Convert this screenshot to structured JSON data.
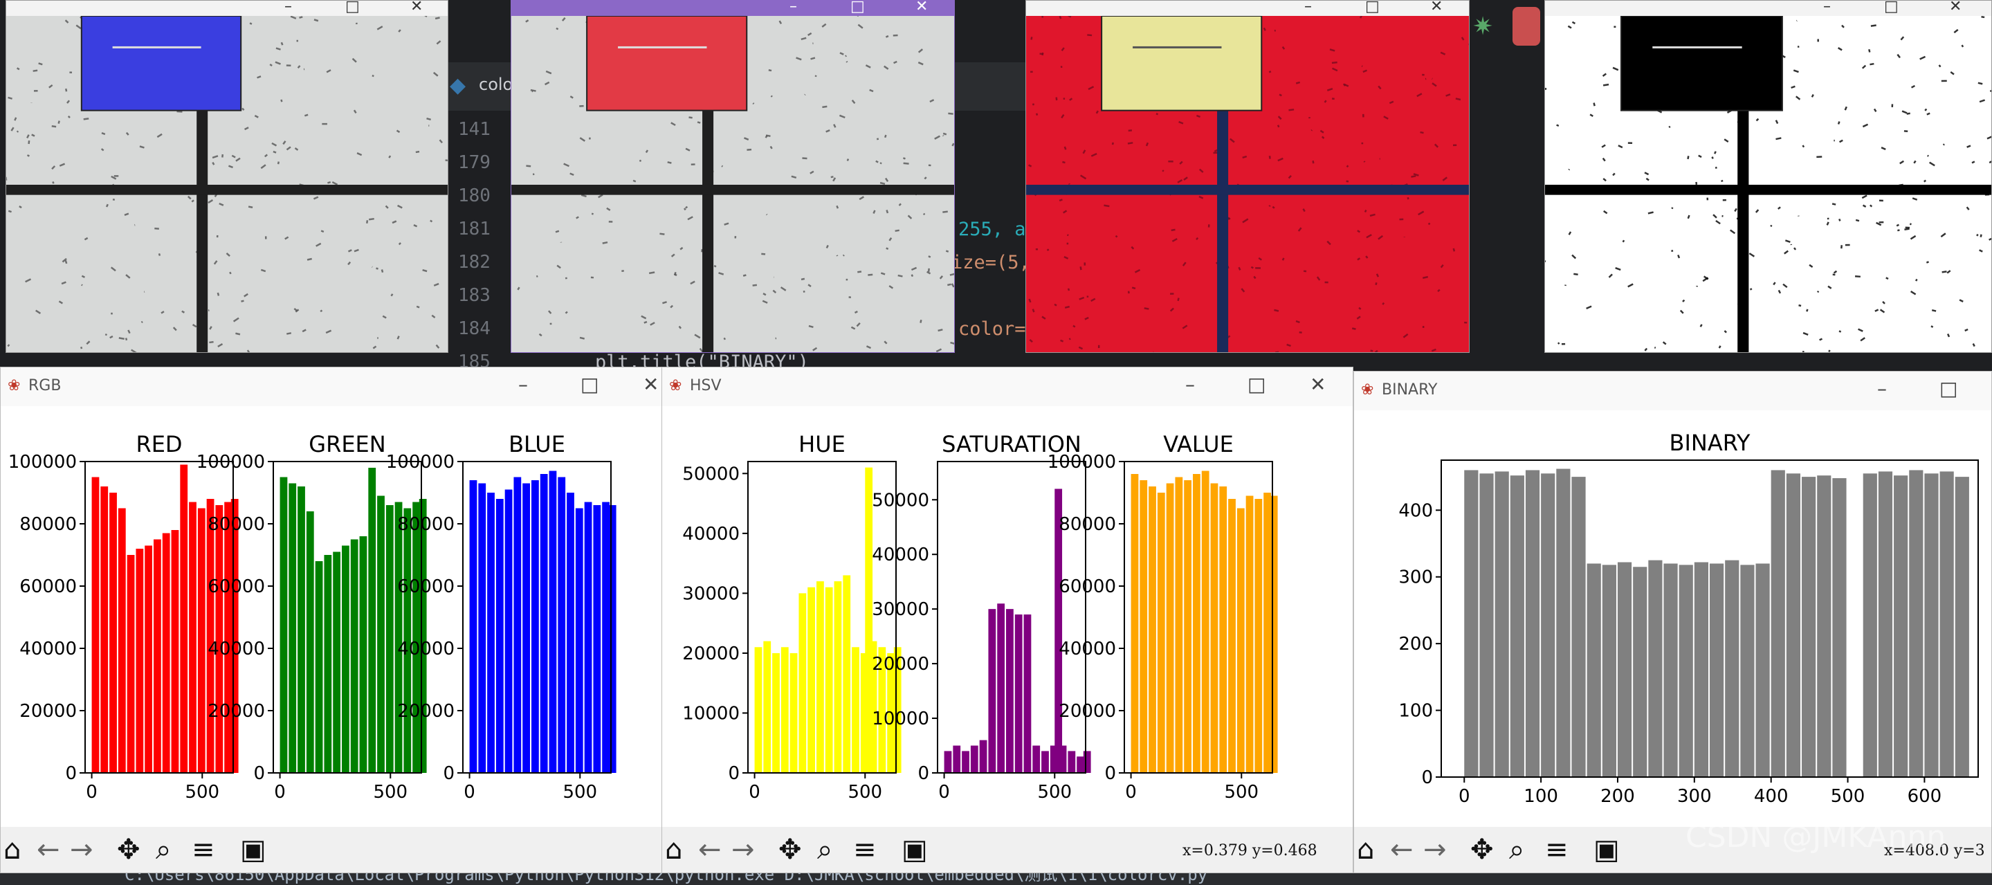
{
  "ide": {
    "file_tab": "colo",
    "line_numbers": [
      "141",
      "179",
      "180",
      "181",
      "182",
      "183",
      "184",
      "185"
    ],
    "code_fragments": [
      "255, a",
      "ize=(5,",
      "color=",
      "plt.title(\"BINARY\")"
    ],
    "terminal_text": "C:\\Users\\86150\\AppData\\Local\\Programs\\Python\\Python312\\python.exe D:\\JMKA\\school\\embedded\\测试\\1\\1\\colorcv.py"
  },
  "image_windows": [
    {
      "id": "original",
      "tile_color": "#3a3ee0"
    },
    {
      "id": "bgr",
      "tile_color": "#e23a45"
    },
    {
      "id": "hsv",
      "tile_color": "#e8e59a"
    },
    {
      "id": "binary",
      "tile_color": "#000000"
    }
  ],
  "plot_windows": [
    {
      "title": "RGB"
    },
    {
      "title": "HSV",
      "coords": "x=0.379  y=0.468"
    },
    {
      "title": "BINARY",
      "coords": "x=408.0  y=3"
    }
  ],
  "icons": [
    "python-file-icon",
    "bug-icon",
    "home-icon",
    "back-arrow-icon",
    "forward-arrow-icon",
    "pan-icon",
    "zoom-icon",
    "configure-subplots-icon",
    "save-icon",
    "minimize-icon",
    "maximize-icon",
    "close-icon"
  ],
  "watermark": "CSDN @JMKAnnn",
  "chart_data": [
    {
      "type": "bar",
      "title": "RED",
      "color": "#ff0000",
      "xlim": [
        -30,
        640
      ],
      "ylim": [
        0,
        100000
      ],
      "yticks": [
        0,
        20000,
        40000,
        60000,
        80000,
        100000
      ],
      "xticks": [
        0,
        500
      ],
      "x": [
        0,
        40,
        80,
        120,
        160,
        200,
        240,
        280,
        320,
        360,
        400,
        440,
        480,
        520,
        560,
        600,
        630
      ],
      "values": [
        95000,
        92000,
        90000,
        85000,
        70000,
        72000,
        73000,
        75000,
        77000,
        78000,
        99000,
        87000,
        85000,
        88000,
        86000,
        87000,
        88000
      ]
    },
    {
      "type": "bar",
      "title": "GREEN",
      "color": "#008000",
      "xlim": [
        -30,
        640
      ],
      "ylim": [
        0,
        100000
      ],
      "yticks": [
        0,
        20000,
        40000,
        60000,
        80000,
        100000
      ],
      "xticks": [
        0,
        500
      ],
      "x": [
        0,
        40,
        80,
        120,
        160,
        200,
        240,
        280,
        320,
        360,
        400,
        440,
        480,
        520,
        560,
        600,
        630
      ],
      "values": [
        95000,
        93000,
        92000,
        84000,
        68000,
        70000,
        71000,
        73000,
        75000,
        76000,
        98000,
        89000,
        86000,
        87000,
        85000,
        87000,
        88000
      ]
    },
    {
      "type": "bar",
      "title": "BLUE",
      "color": "#0000ff",
      "xlim": [
        -30,
        640
      ],
      "ylim": [
        0,
        100000
      ],
      "yticks": [
        0,
        20000,
        40000,
        60000,
        80000,
        100000
      ],
      "xticks": [
        0,
        500
      ],
      "x": [
        0,
        40,
        80,
        120,
        160,
        200,
        240,
        280,
        320,
        360,
        400,
        440,
        480,
        520,
        560,
        600,
        630
      ],
      "values": [
        94000,
        93000,
        90000,
        88000,
        91000,
        95000,
        93000,
        94000,
        96000,
        97000,
        95000,
        90000,
        85000,
        87000,
        86000,
        87000,
        86000
      ]
    },
    {
      "type": "bar",
      "title": "HUE",
      "color": "#ffff00",
      "xlim": [
        -30,
        640
      ],
      "ylim": [
        0,
        52000
      ],
      "yticks": [
        0,
        10000,
        20000,
        30000,
        40000,
        50000
      ],
      "xticks": [
        0,
        500
      ],
      "x": [
        0,
        40,
        80,
        120,
        160,
        200,
        240,
        280,
        320,
        360,
        400,
        440,
        480,
        500,
        520,
        560,
        600,
        630
      ],
      "values": [
        21000,
        22000,
        20000,
        21000,
        20000,
        30000,
        31000,
        32000,
        31000,
        32000,
        33000,
        21000,
        20000,
        51000,
        22000,
        21000,
        20000,
        21000
      ]
    },
    {
      "type": "bar",
      "title": "SATURATION",
      "color": "#800080",
      "xlim": [
        -30,
        640
      ],
      "ylim": [
        0,
        57000
      ],
      "yticks": [
        0,
        10000,
        20000,
        30000,
        40000,
        50000
      ],
      "xticks": [
        0,
        500
      ],
      "x": [
        0,
        40,
        80,
        120,
        160,
        200,
        240,
        280,
        320,
        360,
        400,
        440,
        480,
        500,
        520,
        560,
        600,
        630
      ],
      "values": [
        4000,
        5000,
        4000,
        5000,
        6000,
        30000,
        31000,
        30000,
        29000,
        29000,
        5000,
        4000,
        5000,
        52000,
        5000,
        4000,
        3000,
        4000
      ]
    },
    {
      "type": "bar",
      "title": "VALUE",
      "color": "#ffa500",
      "xlim": [
        -30,
        640
      ],
      "ylim": [
        0,
        100000
      ],
      "yticks": [
        0,
        20000,
        40000,
        60000,
        80000,
        100000
      ],
      "xticks": [
        0,
        500
      ],
      "x": [
        0,
        40,
        80,
        120,
        160,
        200,
        240,
        280,
        320,
        360,
        400,
        440,
        480,
        520,
        560,
        600,
        630
      ],
      "values": [
        96000,
        94000,
        92000,
        90000,
        93000,
        95000,
        94000,
        96000,
        97000,
        93000,
        92000,
        88000,
        85000,
        89000,
        88000,
        90000,
        89000
      ]
    },
    {
      "type": "bar",
      "title": "BINARY",
      "color": "#808080",
      "xlim": [
        -30,
        670
      ],
      "ylim": [
        0,
        475
      ],
      "yticks": [
        0,
        100,
        200,
        300,
        400
      ],
      "xticks": [
        0,
        100,
        200,
        300,
        400,
        500,
        600
      ],
      "x": [
        0,
        20,
        40,
        60,
        80,
        100,
        120,
        140,
        160,
        180,
        200,
        220,
        240,
        260,
        280,
        300,
        320,
        340,
        360,
        380,
        400,
        420,
        440,
        460,
        480,
        500,
        520,
        540,
        560,
        580,
        600,
        620,
        640
      ],
      "values": [
        460,
        455,
        458,
        452,
        460,
        455,
        462,
        450,
        320,
        318,
        322,
        315,
        325,
        320,
        318,
        322,
        320,
        325,
        318,
        320,
        460,
        455,
        450,
        452,
        448,
        0,
        455,
        458,
        452,
        460,
        455,
        458,
        450
      ]
    }
  ]
}
